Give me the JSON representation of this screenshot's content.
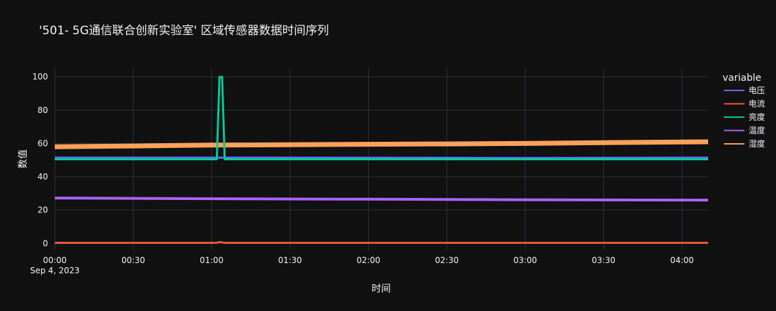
{
  "chart_data": {
    "type": "line",
    "title": "'501- 5G通信联合创新实验室' 区域传感器数据时间序列",
    "xlabel": "时间",
    "ylabel": "数值",
    "x_range": [
      "2023-09-04 00:00",
      "2023-09-04 04:10"
    ],
    "ylim": [
      -4,
      105
    ],
    "x_ticks": [
      "00:00",
      "00:30",
      "01:00",
      "01:30",
      "02:00",
      "02:30",
      "03:00",
      "03:30",
      "04:00"
    ],
    "x_tick_date": "Sep 4, 2023",
    "y_ticks": [
      "0",
      "20",
      "40",
      "60",
      "80",
      "100"
    ],
    "grid": true,
    "legend": {
      "title": "variable",
      "position": "right"
    },
    "series": [
      {
        "name": "电压",
        "color": "#636efa",
        "x": [
          "2023-09-04 00:00",
          "2023-09-04 01:00",
          "2023-09-04 02:00",
          "2023-09-04 03:00",
          "2023-09-04 04:10"
        ],
        "y": [
          51.5,
          51.5,
          51.4,
          51.3,
          51.5
        ]
      },
      {
        "name": "电流",
        "color": "#ef553b",
        "x": [
          "2023-09-04 00:00",
          "2023-09-04 01:02",
          "2023-09-04 01:03",
          "2023-09-04 01:04",
          "2023-09-04 01:05",
          "2023-09-04 04:10"
        ],
        "y": [
          0.3,
          0.3,
          0.8,
          0.6,
          0.3,
          0.3
        ]
      },
      {
        "name": "亮度",
        "color": "#00cc96",
        "x": [
          "2023-09-04 00:00",
          "2023-09-04 01:02",
          "2023-09-04 01:03",
          "2023-09-04 01:04",
          "2023-09-04 01:05",
          "2023-09-04 01:06",
          "2023-09-04 04:10"
        ],
        "y": [
          50.5,
          50.5,
          100,
          100,
          50.5,
          50.5,
          50.5
        ]
      },
      {
        "name": "温度",
        "color": "#ab63fa",
        "x": [
          "2023-09-04 00:00",
          "2023-09-04 01:00",
          "2023-09-04 02:00",
          "2023-09-04 03:00",
          "2023-09-04 04:10"
        ],
        "y": [
          27.2,
          26.8,
          26.5,
          26.2,
          26.0
        ]
      },
      {
        "name": "湿度",
        "color": "#ffa15a",
        "x": [
          "2023-09-04 00:00",
          "2023-09-04 00:30",
          "2023-09-04 01:00",
          "2023-09-04 01:30",
          "2023-09-04 02:00",
          "2023-09-04 02:30",
          "2023-09-04 03:00",
          "2023-09-04 03:30",
          "2023-09-04 04:10"
        ],
        "y": [
          58,
          58.5,
          59,
          59.2,
          59.5,
          59.7,
          60,
          60.5,
          61
        ]
      }
    ]
  }
}
